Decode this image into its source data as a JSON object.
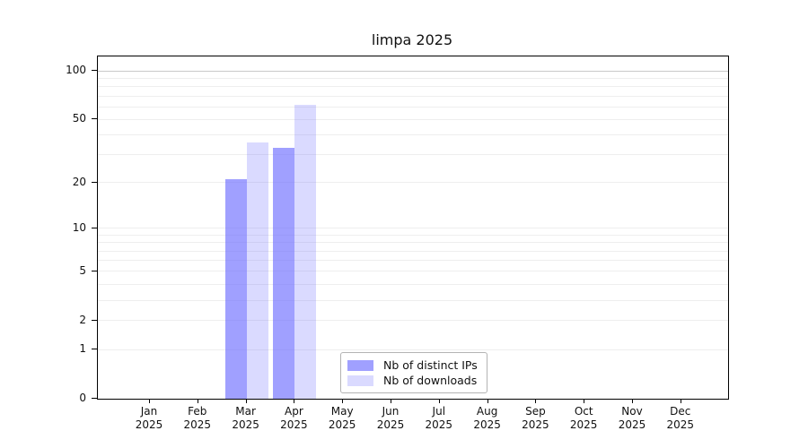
{
  "title": "limpa 2025",
  "chart_data": {
    "type": "bar",
    "title": "limpa 2025",
    "y_scale": "log10(1+y)",
    "ylim": [
      0,
      122.7
    ],
    "y_ticks": [
      0,
      1,
      2,
      5,
      10,
      20,
      50,
      100
    ],
    "gridlines": [
      1,
      2,
      3,
      4,
      5,
      6,
      7,
      8,
      9,
      10,
      20,
      30,
      40,
      50,
      60,
      70,
      80,
      90,
      100
    ],
    "emphasized_gridline": 100,
    "categories": [
      "Jan",
      "Feb",
      "Mar",
      "Apr",
      "May",
      "Jun",
      "Jul",
      "Aug",
      "Sep",
      "Oct",
      "Nov",
      "Dec"
    ],
    "year": "2025",
    "series": [
      {
        "name": "Nb of distinct IPs",
        "color": "rgba(102,102,255,0.62)",
        "values": [
          0,
          0,
          21,
          33,
          0,
          0,
          0,
          0,
          0,
          0,
          0,
          0
        ]
      },
      {
        "name": "Nb of downloads",
        "color": "rgba(102,102,255,0.24)",
        "values": [
          0,
          0,
          36,
          62,
          0,
          0,
          0,
          0,
          0,
          0,
          0,
          0
        ]
      }
    ],
    "legend_position": "bottom-center-inside",
    "grid": "horizontal-only",
    "colors": {
      "grid_minor": "#eeeeee",
      "grid_emph": "#c9c9c9",
      "spine": "#000000",
      "background": "#ffffff"
    }
  }
}
